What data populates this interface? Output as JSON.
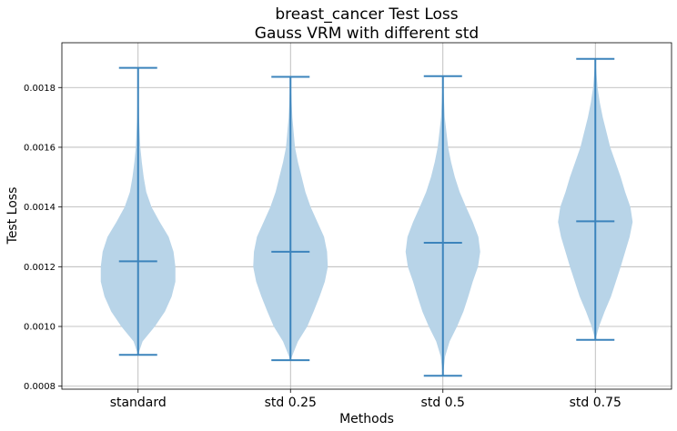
{
  "chart_data": {
    "type": "violin",
    "title": "breast_cancer Test Loss",
    "subtitle": "Gauss VRM with different std",
    "xlabel": "Methods",
    "ylabel": "Test Loss",
    "ylim": [
      0.00079,
      0.00195
    ],
    "yticks": [
      "0.0008",
      "0.0010",
      "0.0012",
      "0.0014",
      "0.0016",
      "0.0018"
    ],
    "ytick_values": [
      0.0008,
      0.001,
      0.0012,
      0.0014,
      0.0016,
      0.0018
    ],
    "grid": true,
    "categories": [
      "standard",
      "std 0.25",
      "std 0.5",
      "std 0.75"
    ],
    "series": [
      {
        "min": 0.000905,
        "max": 0.001866,
        "mean": 0.001218,
        "density": [
          [
            0.000905,
            0.0
          ],
          [
            0.00095,
            0.12
          ],
          [
            0.001,
            0.45
          ],
          [
            0.00105,
            0.72
          ],
          [
            0.0011,
            0.9
          ],
          [
            0.00115,
            1.0
          ],
          [
            0.0012,
            1.0
          ],
          [
            0.00125,
            0.95
          ],
          [
            0.0013,
            0.82
          ],
          [
            0.00135,
            0.58
          ],
          [
            0.0014,
            0.36
          ],
          [
            0.00145,
            0.22
          ],
          [
            0.0015,
            0.15
          ],
          [
            0.00155,
            0.1
          ],
          [
            0.0016,
            0.06
          ],
          [
            0.0017,
            0.025
          ],
          [
            0.001866,
            0.0
          ]
        ]
      },
      {
        "min": 0.000887,
        "max": 0.001836,
        "mean": 0.00125,
        "density": [
          [
            0.000887,
            0.0
          ],
          [
            0.00095,
            0.2
          ],
          [
            0.001,
            0.45
          ],
          [
            0.00105,
            0.62
          ],
          [
            0.0011,
            0.78
          ],
          [
            0.00115,
            0.92
          ],
          [
            0.0012,
            1.0
          ],
          [
            0.00125,
            0.98
          ],
          [
            0.0013,
            0.9
          ],
          [
            0.00135,
            0.72
          ],
          [
            0.0014,
            0.54
          ],
          [
            0.00145,
            0.4
          ],
          [
            0.0015,
            0.3
          ],
          [
            0.00155,
            0.2
          ],
          [
            0.0016,
            0.12
          ],
          [
            0.0017,
            0.05
          ],
          [
            0.001836,
            0.0
          ]
        ]
      },
      {
        "min": 0.000835,
        "max": 0.001838,
        "mean": 0.00128,
        "density": [
          [
            0.000835,
            0.0
          ],
          [
            0.0009,
            0.06
          ],
          [
            0.00095,
            0.18
          ],
          [
            0.001,
            0.38
          ],
          [
            0.00105,
            0.55
          ],
          [
            0.0011,
            0.68
          ],
          [
            0.00115,
            0.8
          ],
          [
            0.0012,
            0.94
          ],
          [
            0.00125,
            1.0
          ],
          [
            0.0013,
            0.95
          ],
          [
            0.00135,
            0.8
          ],
          [
            0.0014,
            0.62
          ],
          [
            0.00145,
            0.45
          ],
          [
            0.0015,
            0.32
          ],
          [
            0.00155,
            0.22
          ],
          [
            0.0016,
            0.14
          ],
          [
            0.0017,
            0.05
          ],
          [
            0.001838,
            0.0
          ]
        ]
      },
      {
        "min": 0.000955,
        "max": 0.001896,
        "mean": 0.001352,
        "density": [
          [
            0.000955,
            0.0
          ],
          [
            0.001,
            0.1
          ],
          [
            0.00105,
            0.25
          ],
          [
            0.0011,
            0.42
          ],
          [
            0.00115,
            0.55
          ],
          [
            0.0012,
            0.68
          ],
          [
            0.00125,
            0.8
          ],
          [
            0.0013,
            0.92
          ],
          [
            0.00135,
            1.0
          ],
          [
            0.0014,
            0.94
          ],
          [
            0.00145,
            0.8
          ],
          [
            0.0015,
            0.68
          ],
          [
            0.00155,
            0.54
          ],
          [
            0.0016,
            0.4
          ],
          [
            0.00165,
            0.3
          ],
          [
            0.0017,
            0.2
          ],
          [
            0.00175,
            0.12
          ],
          [
            0.0018,
            0.06
          ],
          [
            0.001896,
            0.0
          ]
        ]
      }
    ],
    "violin_color": "#b8d4e8",
    "line_color": "#3c84bc"
  }
}
